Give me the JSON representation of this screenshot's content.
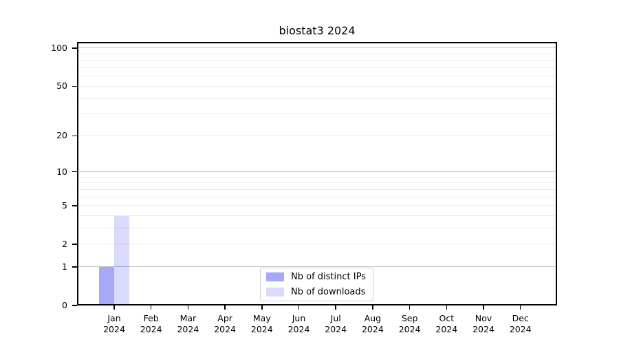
{
  "chart_data": {
    "type": "bar",
    "title": "biostat3 2024",
    "categories": [
      "Jan 2024",
      "Feb 2024",
      "Mar 2024",
      "Apr 2024",
      "May 2024",
      "Jun 2024",
      "Jul 2024",
      "Aug 2024",
      "Sep 2024",
      "Oct 2024",
      "Nov 2024",
      "Dec 2024"
    ],
    "series": [
      {
        "name": "Nb of distinct IPs",
        "color": "rgba(0,0,238,0.34)",
        "values": [
          1,
          0,
          0,
          0,
          0,
          0,
          0,
          0,
          0,
          0,
          0,
          0
        ]
      },
      {
        "name": "Nb of downloads",
        "color": "rgba(0,0,238,0.145)",
        "values": [
          4,
          0,
          0,
          0,
          0,
          0,
          0,
          0,
          0,
          0,
          0,
          0
        ]
      }
    ],
    "y_axis": {
      "scale": "log10(1+y)",
      "tick_values": [
        0,
        1,
        2,
        5,
        10,
        20,
        50,
        100
      ],
      "major_gridlines": [
        1,
        10,
        100
      ],
      "minor_gridlines": [
        2,
        3,
        4,
        5,
        6,
        7,
        8,
        9,
        20,
        30,
        40,
        50,
        60,
        70,
        80,
        90
      ],
      "range": [
        0,
        112
      ]
    },
    "x_axis": {
      "label_lines": 2
    },
    "grid": "horizontal",
    "legend_position": "bottom-center"
  },
  "colors": {
    "background": "#ffffff",
    "axis": "#000000",
    "major_grid": "#c6c6c6",
    "minor_grid": "#ececec",
    "legend_border": "#d0d0d0"
  }
}
